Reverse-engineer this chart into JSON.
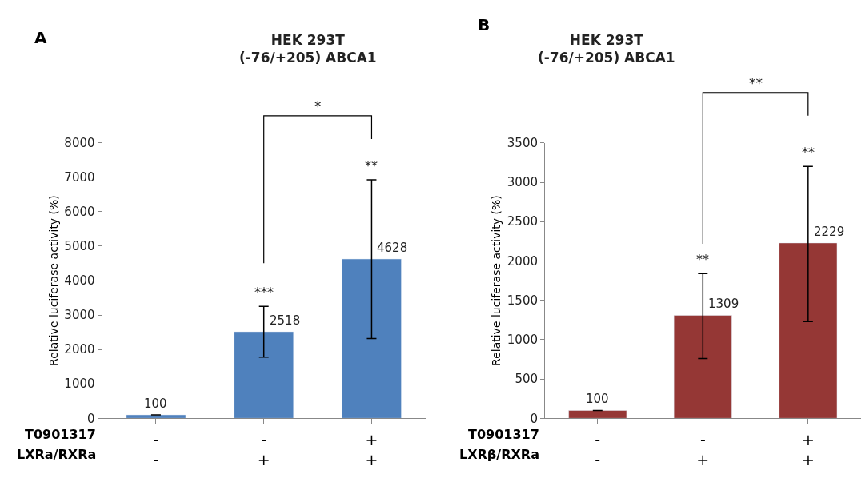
{
  "chart_data": [
    {
      "type": "bar",
      "title": "HEK 293T\n(-76/+205) ABCA1",
      "ylabel": "Relative luciferase activity (%)",
      "categories": [
        "-\n-",
        "-\n+",
        "+\n+"
      ],
      "series": [
        {
          "color": "#4f81bd",
          "values": [
            100,
            2518,
            4628
          ],
          "errors": [
            null,
            [
              1780,
              3250
            ],
            [
              2320,
              6930
            ]
          ]
        }
      ],
      "ylim": [
        0,
        8000
      ],
      "yticks": [
        0,
        1000,
        2000,
        3000,
        4000,
        5000,
        6000,
        7000,
        8000
      ],
      "data_labels": true,
      "annotations": [
        "A",
        "T0901317",
        "LXRa/RXRa",
        "*",
        "***",
        "**"
      ]
    },
    {
      "type": "bar",
      "title": "HEK 293T\n(-76/+205) ABCA1",
      "ylabel": "Relative luciferase activity (%)",
      "categories": [
        "-\n-",
        "-\n+",
        "+\n+"
      ],
      "series": [
        {
          "color": "#953735",
          "values": [
            100,
            1309,
            2229
          ],
          "errors": [
            null,
            [
              760,
              1840
            ],
            [
              1230,
              3200
            ]
          ]
        }
      ],
      "ylim": [
        0,
        3500
      ],
      "yticks": [
        0,
        500,
        1000,
        1500,
        2000,
        2500,
        3000,
        3500
      ],
      "data_labels": true,
      "annotations": [
        "B",
        "T0901317",
        "LXRβ/RXRa",
        "**",
        "**",
        "**"
      ]
    }
  ]
}
